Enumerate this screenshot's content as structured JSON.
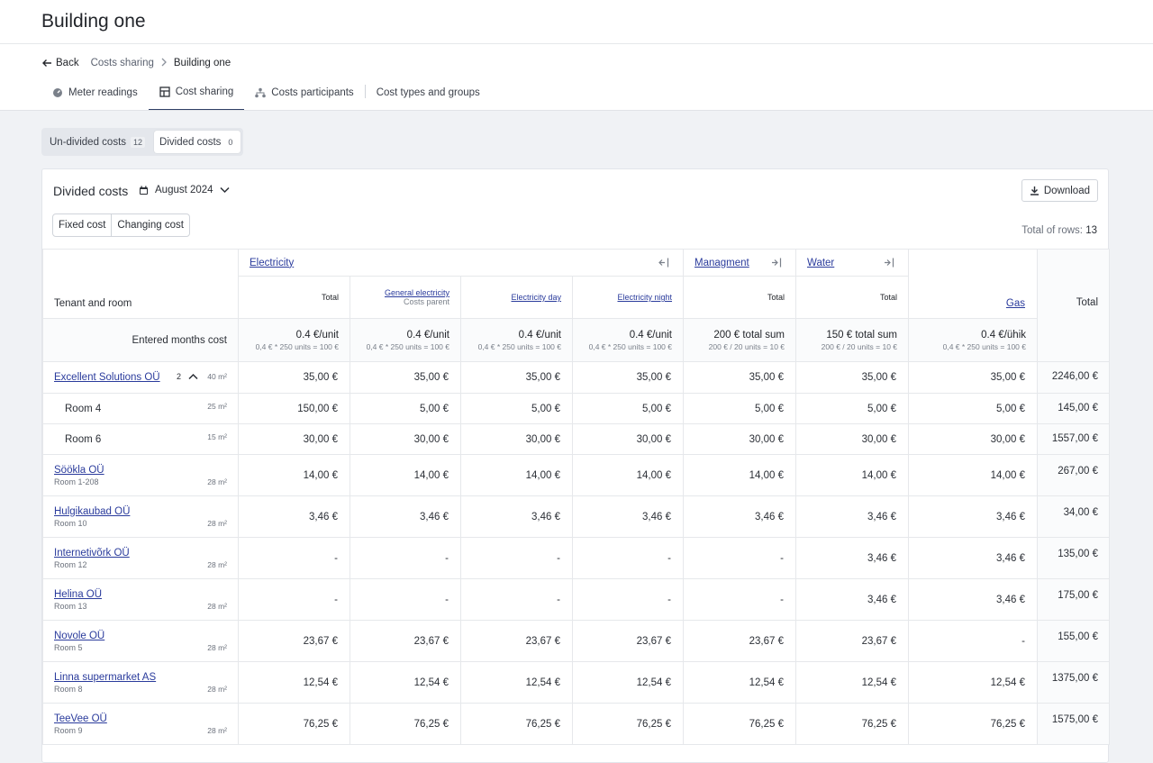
{
  "page": {
    "title": "Building one"
  },
  "breadcrumb": {
    "back": "Back",
    "parent": "Costs sharing",
    "current": "Building one"
  },
  "tabs": [
    {
      "label": "Meter readings",
      "icon": "meter-icon"
    },
    {
      "label": "Cost sharing",
      "icon": "grid-icon"
    },
    {
      "label": "Costs participants",
      "icon": "hierarchy-icon"
    },
    {
      "label": "Cost types and groups",
      "icon": ""
    }
  ],
  "segment": {
    "undivided": {
      "label": "Un-divided costs",
      "count": "12"
    },
    "divided": {
      "label": "Divided costs",
      "count": "0"
    }
  },
  "card": {
    "title": "Divided costs",
    "month": "August 2024",
    "download": "Download",
    "toggle": {
      "fixed": "Fixed cost",
      "changing": "Changing cost"
    },
    "total_rows_label": "Total of rows:",
    "total_rows_value": "13"
  },
  "table": {
    "tenant_header": "Tenant and room",
    "entered_label": "Entered months cost",
    "total_header": "Total",
    "groups": {
      "electricity": "Electricity",
      "management": "Managment",
      "water": "Water",
      "gas": "Gas"
    },
    "columns": [
      {
        "label": "Total",
        "sublabel": "",
        "price": "0.4 €/unit",
        "calc": "0,4 € * 250 units = 100 €"
      },
      {
        "label": "General electricity",
        "sublabel": "Costs parent",
        "price": "0.4 €/unit",
        "calc": "0,4 € * 250 units = 100 €"
      },
      {
        "label": "Electricity day",
        "sublabel": "",
        "price": "0.4 €/unit",
        "calc": "0,4 € * 250 units = 100 €"
      },
      {
        "label": "Electricity night",
        "sublabel": "",
        "price": "0.4 €/unit",
        "calc": "0,4 € * 250 units = 100 €"
      },
      {
        "label": "Total",
        "sublabel": "",
        "price": "200 € total sum",
        "calc": "200 € / 20 units = 10 €"
      },
      {
        "label": "Total",
        "sublabel": "",
        "price": "150 € total sum",
        "calc": "200 € / 20 units = 10 €"
      },
      {
        "label": "",
        "sublabel": "",
        "price": "0.4 €/ühik",
        "calc": "0,4 € * 250 units = 100 €"
      }
    ],
    "rows": [
      {
        "name": "Excellent Solutions OÜ",
        "room": "",
        "badge": "2",
        "area": "40 m²",
        "values": [
          "35,00 €",
          "35,00 €",
          "35,00 €",
          "35,00 €",
          "35,00 €",
          "35,00 €",
          "35,00 €"
        ],
        "total": "2246,00 €",
        "sub": false
      },
      {
        "name": "Room 4",
        "room": "",
        "badge": "",
        "area": "25 m²",
        "values": [
          "150,00 €",
          "5,00 €",
          "5,00 €",
          "5,00 €",
          "5,00 €",
          "5,00 €",
          "5,00 €"
        ],
        "total": "145,00 €",
        "sub": true
      },
      {
        "name": "Room 6",
        "room": "",
        "badge": "",
        "area": "15 m²",
        "values": [
          "30,00 €",
          "30,00 €",
          "30,00 €",
          "30,00 €",
          "30,00 €",
          "30,00 €",
          "30,00 €"
        ],
        "total": "1557,00 €",
        "sub": true
      },
      {
        "name": "Söökla OÜ",
        "room": "Room 1-208",
        "badge": "",
        "area": "28 m²",
        "values": [
          "14,00 €",
          "14,00 €",
          "14,00 €",
          "14,00 €",
          "14,00 €",
          "14,00 €",
          "14,00 €"
        ],
        "total": "267,00 €",
        "sub": false
      },
      {
        "name": "Hulgikaubad OÜ",
        "room": "Room 10",
        "badge": "",
        "area": "28 m²",
        "values": [
          "3,46 €",
          "3,46 €",
          "3,46 €",
          "3,46 €",
          "3,46 €",
          "3,46 €",
          "3,46 €"
        ],
        "total": "34,00 €",
        "sub": false
      },
      {
        "name": "Internetivõrk OÜ",
        "room": "Room 12",
        "badge": "",
        "area": "28 m²",
        "values": [
          "-",
          "-",
          "-",
          "-",
          "-",
          "3,46 €",
          "3,46 €"
        ],
        "total": "135,00 €",
        "sub": false
      },
      {
        "name": "Helina OÜ",
        "room": "Room 13",
        "badge": "",
        "area": "28 m²",
        "values": [
          "-",
          "-",
          "-",
          "-",
          "-",
          "3,46 €",
          "3,46 €"
        ],
        "total": "175,00 €",
        "sub": false
      },
      {
        "name": "Novole OÜ",
        "room": "Room 5",
        "badge": "",
        "area": "28 m²",
        "values": [
          "23,67 €",
          "23,67 €",
          "23,67 €",
          "23,67 €",
          "23,67 €",
          "23,67 €",
          "-"
        ],
        "total": "155,00 €",
        "sub": false
      },
      {
        "name": "Linna supermarket AS",
        "room": "Room 8",
        "badge": "",
        "area": "28 m²",
        "values": [
          "12,54 €",
          "12,54 €",
          "12,54 €",
          "12,54 €",
          "12,54 €",
          "12,54 €",
          "12,54 €"
        ],
        "total": "1375,00 €",
        "sub": false
      },
      {
        "name": "TeeVee OÜ",
        "room": "Room 9",
        "badge": "",
        "area": "28 m²",
        "values": [
          "76,25 €",
          "76,25 €",
          "76,25 €",
          "76,25 €",
          "76,25 €",
          "76,25 €",
          "76,25 €"
        ],
        "total": "1575,00 €",
        "sub": false
      }
    ]
  }
}
